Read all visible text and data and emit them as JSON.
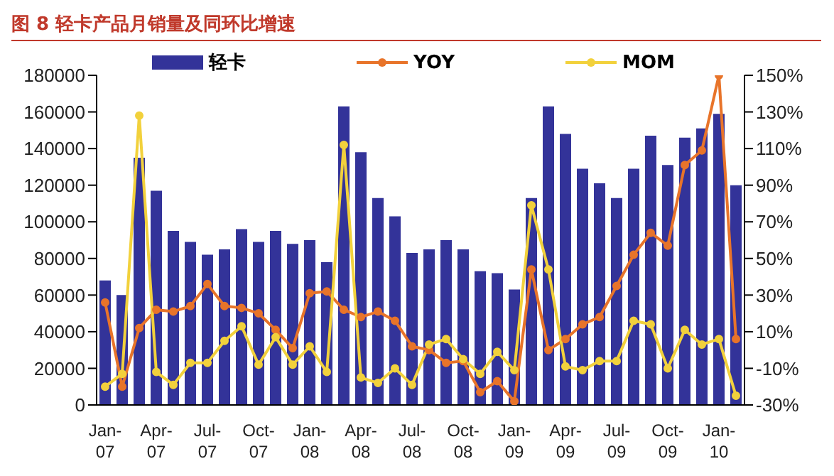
{
  "chart_data": {
    "type": "bar",
    "title": "图 8   轻卡产品月销量及同环比增速",
    "categories": [
      "Jan-07",
      null,
      null,
      "Apr-07",
      null,
      null,
      "Jul-07",
      null,
      null,
      "Oct-07",
      null,
      null,
      "Jan-08",
      null,
      null,
      "Apr-08",
      null,
      null,
      "Jul-08",
      null,
      null,
      "Oct-08",
      null,
      null,
      "Jan-09",
      null,
      null,
      "Apr-09",
      null,
      null,
      "Jul-09",
      null,
      null,
      "Oct-09",
      null,
      null,
      "Jan-10",
      null
    ],
    "series": [
      {
        "name": "轻卡",
        "color": "#333399",
        "values": [
          68000,
          60000,
          135000,
          117000,
          95000,
          89000,
          82000,
          85000,
          96000,
          89000,
          95000,
          88000,
          90000,
          78000,
          163000,
          138000,
          113000,
          103000,
          83000,
          85000,
          90000,
          85000,
          73000,
          72000,
          63000,
          113000,
          163000,
          148000,
          129000,
          121000,
          113000,
          129000,
          147000,
          131000,
          146000,
          151000,
          159000,
          120000
        ]
      },
      {
        "name": "YOY",
        "type": "line",
        "axis": "y2",
        "color": "#e8742a",
        "values": [
          26,
          -20,
          12,
          22,
          21,
          24,
          36,
          24,
          23,
          20,
          11,
          1,
          31,
          32,
          22,
          18,
          21,
          16,
          2,
          0,
          -7,
          -6,
          -23,
          -17,
          -28,
          44,
          0,
          6,
          14,
          18,
          35,
          52,
          64,
          57,
          101,
          109,
          150,
          6
        ]
      },
      {
        "name": "MOM",
        "type": "line",
        "axis": "y2",
        "color": "#f2d13c",
        "values": [
          -20,
          -13,
          128,
          -12,
          -19,
          -7,
          -7,
          5,
          13,
          -8,
          7,
          -8,
          2,
          -12,
          112,
          -15,
          -18,
          -10,
          -19,
          3,
          6,
          -5,
          -13,
          -1,
          -11,
          79,
          44,
          -9,
          -11,
          -6,
          -6,
          16,
          14,
          -10,
          11,
          3,
          6,
          -25
        ]
      }
    ],
    "ylim": [
      0,
      180000
    ],
    "yticks": [
      0,
      20000,
      40000,
      60000,
      80000,
      100000,
      120000,
      140000,
      160000,
      180000
    ],
    "y2lim": [
      -30,
      150
    ],
    "y2ticks": [
      {
        "value": -30,
        "label": "-30%"
      },
      {
        "value": -10,
        "label": "-10%"
      },
      {
        "value": 10,
        "label": "10%"
      },
      {
        "value": 30,
        "label": "30%"
      },
      {
        "value": 50,
        "label": "50%"
      },
      {
        "value": 70,
        "label": "70%"
      },
      {
        "value": 90,
        "label": "90%"
      },
      {
        "value": 110,
        "label": "110%"
      },
      {
        "value": 130,
        "label": "130%"
      },
      {
        "value": 150,
        "label": "150%"
      }
    ],
    "marker": "circle",
    "legend": "top",
    "grid": false
  }
}
